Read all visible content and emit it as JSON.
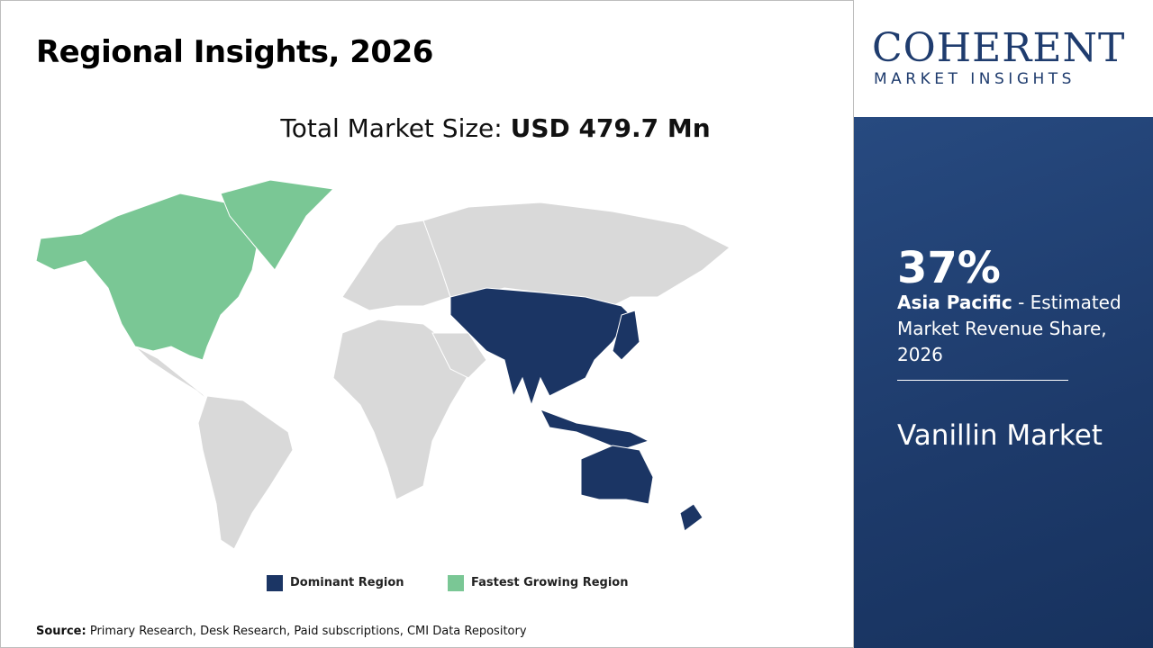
{
  "header": {
    "title": "Regional Insights, 2026"
  },
  "market_size": {
    "label": "Total Market Size:",
    "value": "USD 479.7 Mn"
  },
  "legend": {
    "items": [
      "Dominant Region",
      "Fastest Growing Region"
    ]
  },
  "source": {
    "label": "Source:",
    "text": "Primary Research, Desk Research, Paid subscriptions, CMI Data Repository"
  },
  "logo": {
    "name": "COHERENT",
    "tagline": "MARKET INSIGHTS"
  },
  "side_panel": {
    "share": "37%",
    "region": "Asia Pacific",
    "description": " - Estimated Market Revenue Share, 2026",
    "market": "Vanillin Market"
  }
}
